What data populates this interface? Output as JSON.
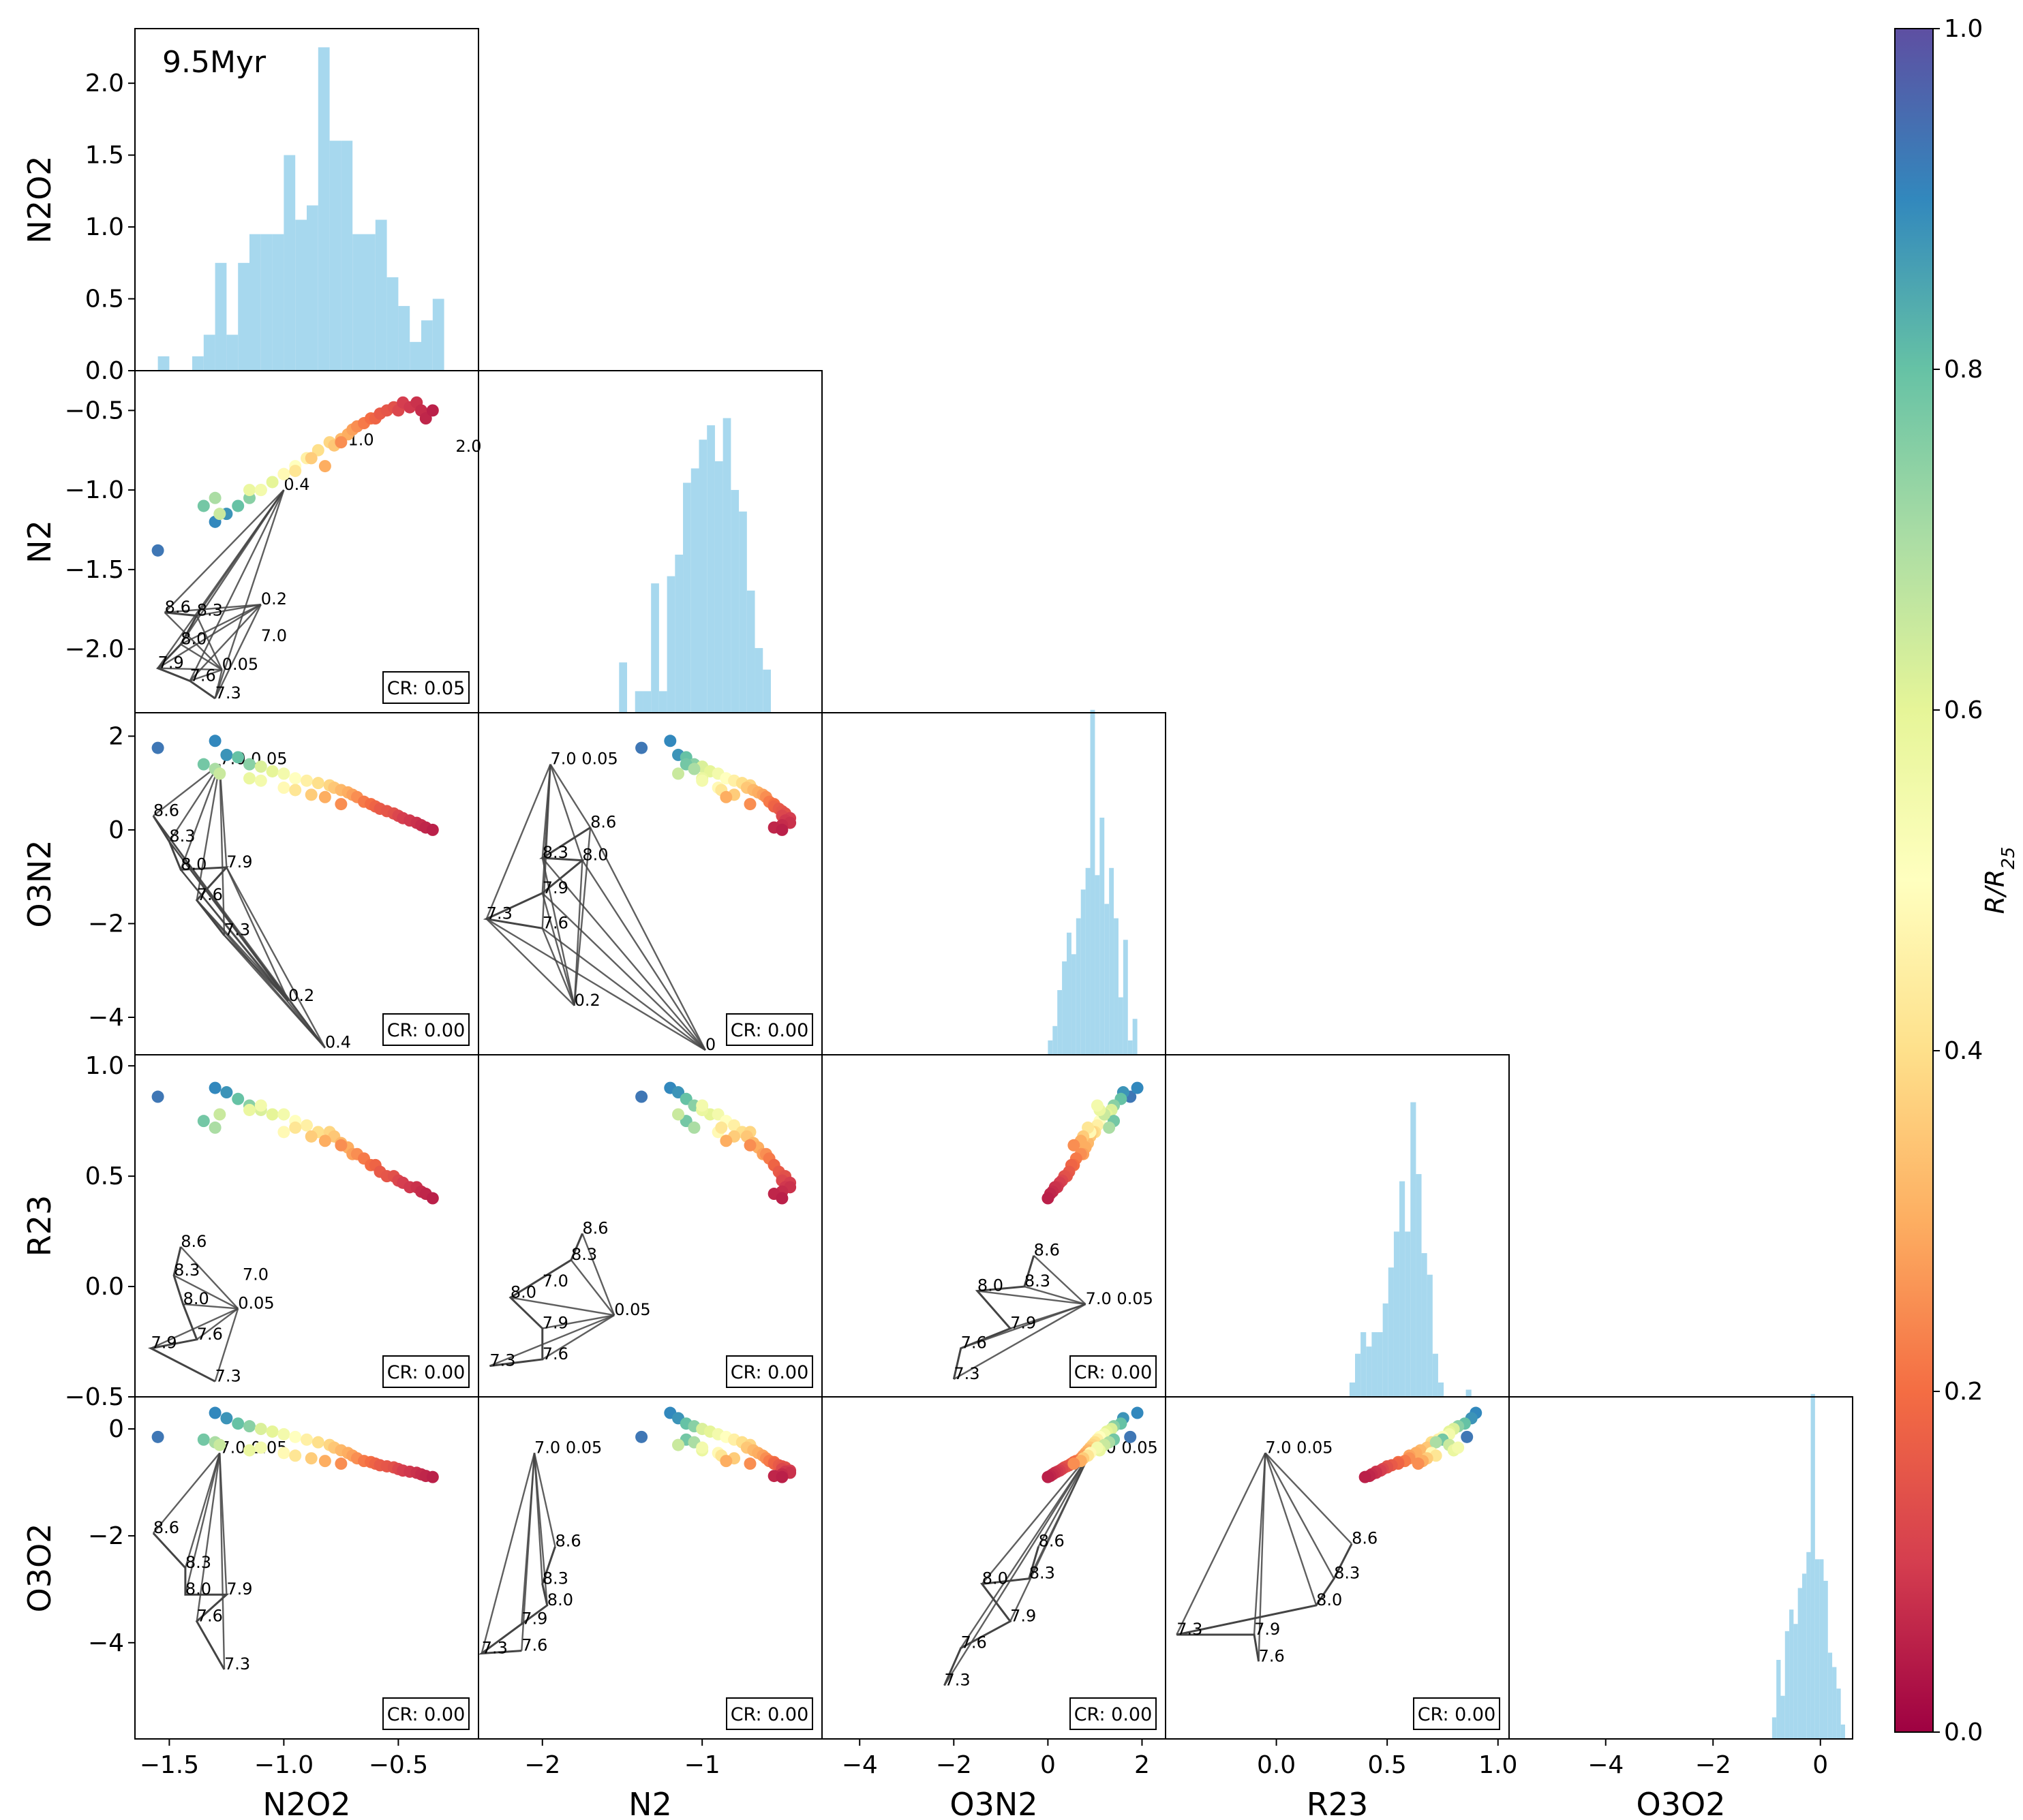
{
  "chart_data": {
    "type": "scatter",
    "title": "",
    "annotation": "9.5Myr",
    "variables": [
      "N2O2",
      "N2",
      "O3N2",
      "R23",
      "O3O2"
    ],
    "ranges": {
      "N2O2": [
        -1.65,
        -0.15
      ],
      "N2": [
        -2.4,
        -0.25
      ],
      "O3N2": [
        -4.8,
        2.5
      ],
      "R23": [
        -0.5,
        1.05
      ],
      "O3O2": [
        -5.8,
        0.6
      ]
    },
    "ticks": {
      "N2O2": [
        -1.5,
        -1.0,
        -0.5
      ],
      "N2": [
        -2,
        -1
      ],
      "O3N2": [
        -4,
        -2,
        0,
        2
      ],
      "R23": [
        0.0,
        0.5,
        1.0
      ],
      "O3O2": [
        -4,
        -2,
        0
      ]
    },
    "tick_labels": {
      "N2O2": [
        "−1.5",
        "−1.0",
        "−0.5"
      ],
      "N2": [
        "−2",
        "−1"
      ],
      "O3N2": [
        "−4",
        "−2",
        "0",
        "2"
      ],
      "R23": [
        "0.0",
        "0.5",
        "1.0"
      ],
      "O3O2": [
        "−4",
        "−2",
        "0"
      ]
    },
    "hist_y_ticks": [
      0.0,
      0.5,
      1.0,
      1.5,
      2.0
    ],
    "hist_y_tick_labels": [
      "0.0",
      "0.5",
      "1.0",
      "1.5",
      "2.0"
    ],
    "r23_row_tick_labels": [
      "−0.5",
      "0.0",
      "0.5",
      "1.0"
    ],
    "r23_row_ticks": [
      -0.5,
      0.0,
      0.5,
      1.0
    ],
    "n2_row_tick_labels": [
      "−2.0",
      "−1.5",
      "−1.0",
      "−0.5"
    ],
    "n2_row_ticks": [
      -2.0,
      -1.5,
      -1.0,
      -0.5
    ],
    "o3n2_row_tick_labels": [
      "−4",
      "−2",
      "0",
      "2"
    ],
    "o3n2_row_ticks": [
      -4,
      -2,
      0,
      2
    ],
    "o3o2_row_tick_labels": [
      "−4",
      "−2",
      "0"
    ],
    "o3o2_row_ticks": [
      -4,
      -2,
      0
    ],
    "histograms": {
      "N2O2": {
        "edges_start": -1.55,
        "bin_width": 0.05,
        "heights": [
          0.1,
          0.0,
          0.0,
          0.1,
          0.25,
          0.75,
          0.25,
          0.75,
          0.95,
          0.95,
          0.95,
          1.5,
          1.05,
          1.15,
          2.25,
          1.6,
          1.6,
          0.95,
          0.95,
          1.05,
          0.65,
          0.45,
          0.2,
          0.35,
          0.5
        ]
      },
      "N2": {
        "edges_start": -1.52,
        "bin_width": 0.05,
        "heights": [
          0.35,
          0.0,
          0.15,
          0.15,
          0.9,
          0.15,
          0.95,
          1.1,
          1.6,
          1.7,
          1.9,
          2.0,
          1.75,
          2.05,
          1.55,
          1.4,
          0.85,
          0.45,
          0.3
        ]
      },
      "O3N2": {
        "edges_start": 0.0,
        "bin_width": 0.1,
        "heights": [
          0.1,
          0.2,
          0.45,
          0.65,
          0.85,
          0.7,
          0.95,
          1.15,
          1.3,
          2.4,
          1.25,
          1.65,
          1.05,
          1.3,
          0.95,
          0.4,
          0.8,
          0.1,
          0.25
        ]
      },
      "R23": {
        "edges_start": 0.33,
        "bin_width": 0.025,
        "heights": [
          0.1,
          0.3,
          0.45,
          0.35,
          0.45,
          0.45,
          0.65,
          0.9,
          1.15,
          1.5,
          1.15,
          2.05,
          1.55,
          1.0,
          0.85,
          0.3,
          0.1,
          0.0,
          0.0,
          0.0,
          0.0,
          0.05
        ]
      },
      "O3O2": {
        "edges_start": -0.9,
        "bin_width": 0.08,
        "heights": [
          0.15,
          0.55,
          0.3,
          0.75,
          0.9,
          0.8,
          1.05,
          1.15,
          1.3,
          2.4,
          1.25,
          1.25,
          1.1,
          0.6,
          0.5,
          0.35,
          0.1
        ]
      }
    },
    "colorbar": {
      "label": "R/R25",
      "label_base": "R/R",
      "label_sub": "25",
      "ticks": [
        0.0,
        0.2,
        0.4,
        0.6,
        0.8,
        1.0
      ],
      "tick_labels": [
        "0.0",
        "0.2",
        "0.4",
        "0.6",
        "0.8",
        "1.0"
      ]
    },
    "cr_labels": {
      "1-0": "CR: 0.05",
      "2-0": "CR: 0.00",
      "2-1": "CR: 0.00",
      "3-0": "CR: 0.00",
      "3-1": "CR: 0.00",
      "3-2": "CR: 0.00",
      "4-0": "CR: 0.00",
      "4-1": "CR: 0.00",
      "4-2": "CR: 0.00",
      "4-3": "CR: 0.00"
    },
    "sample_points": {
      "N2O2": [
        -1.55,
        -1.3,
        -1.25,
        -1.2,
        -1.15,
        -1.1,
        -1.05,
        -1.0,
        -0.95,
        -0.9,
        -0.85,
        -0.8,
        -0.78,
        -0.75,
        -0.72,
        -0.7,
        -0.68,
        -0.65,
        -0.62,
        -0.6,
        -0.58,
        -0.55,
        -0.52,
        -0.5,
        -0.48,
        -0.45,
        -0.42,
        -0.4,
        -0.38,
        -0.35,
        -1.35,
        -1.3,
        -1.28,
        -1.15,
        -1.1,
        -1.0,
        -0.95,
        -0.88,
        -0.82,
        -0.75
      ],
      "N2": [
        -1.38,
        -1.2,
        -1.15,
        -1.1,
        -1.05,
        -1.0,
        -0.95,
        -0.9,
        -0.85,
        -0.8,
        -0.75,
        -0.7,
        -0.72,
        -0.68,
        -0.65,
        -0.62,
        -0.6,
        -0.58,
        -0.55,
        -0.55,
        -0.52,
        -0.5,
        -0.48,
        -0.5,
        -0.45,
        -0.48,
        -0.45,
        -0.5,
        -0.55,
        -0.5,
        -1.1,
        -1.05,
        -1.15,
        -1.0,
        -1.0,
        -0.9,
        -0.88,
        -0.8,
        -0.85,
        -0.7
      ],
      "O3N2": [
        1.75,
        1.9,
        1.6,
        1.55,
        1.4,
        1.35,
        1.25,
        1.2,
        1.1,
        1.05,
        1.0,
        0.95,
        0.9,
        0.85,
        0.8,
        0.75,
        0.7,
        0.6,
        0.55,
        0.5,
        0.45,
        0.4,
        0.35,
        0.3,
        0.25,
        0.2,
        0.15,
        0.1,
        0.05,
        0.0,
        1.4,
        1.3,
        1.2,
        1.1,
        1.05,
        0.9,
        0.85,
        0.75,
        0.7,
        0.55
      ],
      "R23": [
        0.86,
        0.9,
        0.88,
        0.85,
        0.82,
        0.8,
        0.78,
        0.78,
        0.75,
        0.73,
        0.7,
        0.7,
        0.68,
        0.65,
        0.63,
        0.6,
        0.6,
        0.58,
        0.55,
        0.55,
        0.52,
        0.5,
        0.5,
        0.48,
        0.47,
        0.45,
        0.45,
        0.43,
        0.42,
        0.4,
        0.75,
        0.72,
        0.78,
        0.8,
        0.82,
        0.7,
        0.72,
        0.68,
        0.66,
        0.64
      ],
      "O3O2": [
        -0.15,
        0.3,
        0.2,
        0.1,
        0.05,
        0.0,
        -0.05,
        -0.1,
        -0.15,
        -0.2,
        -0.25,
        -0.3,
        -0.35,
        -0.4,
        -0.45,
        -0.5,
        -0.55,
        -0.6,
        -0.62,
        -0.65,
        -0.68,
        -0.7,
        -0.72,
        -0.75,
        -0.78,
        -0.8,
        -0.82,
        -0.85,
        -0.88,
        -0.9,
        -0.2,
        -0.25,
        -0.3,
        -0.4,
        -0.35,
        -0.45,
        -0.5,
        -0.55,
        -0.6,
        -0.65
      ],
      "R": [
        0.93,
        0.9,
        0.88,
        0.8,
        0.75,
        0.62,
        0.6,
        0.55,
        0.5,
        0.45,
        0.4,
        0.38,
        0.35,
        0.32,
        0.3,
        0.28,
        0.25,
        0.22,
        0.2,
        0.18,
        0.16,
        0.15,
        0.14,
        0.12,
        0.1,
        0.09,
        0.08,
        0.07,
        0.06,
        0.05,
        0.78,
        0.7,
        0.65,
        0.58,
        0.55,
        0.48,
        0.42,
        0.36,
        0.3,
        0.25
      ]
    },
    "grid_labels": {
      "1-0": [
        {
          "t": "1.0",
          "x": -0.72,
          "y": -0.72
        },
        {
          "t": "2.0",
          "x": -0.25,
          "y": -0.76
        },
        {
          "t": "0.4",
          "x": -1.0,
          "y": -1.0
        },
        {
          "t": "0.2",
          "x": -1.1,
          "y": -1.72
        },
        {
          "t": "8.6",
          "x": -1.52,
          "y": -1.77
        },
        {
          "t": "8.3",
          "x": -1.38,
          "y": -1.79
        },
        {
          "t": "7.0",
          "x": -1.1,
          "y": -1.95
        },
        {
          "t": "8.0",
          "x": -1.45,
          "y": -1.97
        },
        {
          "t": "7.9",
          "x": -1.55,
          "y": -2.12
        },
        {
          "t": "0.05",
          "x": -1.27,
          "y": -2.13
        },
        {
          "t": "7.6",
          "x": -1.41,
          "y": -2.2
        },
        {
          "t": "7.3",
          "x": -1.3,
          "y": -2.31
        }
      ],
      "2-0": [
        {
          "t": "7.0 0.05",
          "x": -1.28,
          "y": 1.4
        },
        {
          "t": "8.6",
          "x": -1.57,
          "y": 0.3
        },
        {
          "t": "8.3",
          "x": -1.5,
          "y": -0.25
        },
        {
          "t": "8.0",
          "x": -1.45,
          "y": -0.85
        },
        {
          "t": "7.9",
          "x": -1.25,
          "y": -0.8
        },
        {
          "t": "7.6",
          "x": -1.38,
          "y": -1.5
        },
        {
          "t": "7.3",
          "x": -1.26,
          "y": -2.25
        },
        {
          "t": "0.2",
          "x": -0.98,
          "y": -3.65
        },
        {
          "t": "0.4",
          "x": -0.82,
          "y": -4.65
        }
      ],
      "2-1": [
        {
          "t": "7.0 0.05",
          "x": -1.95,
          "y": 1.4
        },
        {
          "t": "8.6",
          "x": -1.7,
          "y": 0.05
        },
        {
          "t": "8.3",
          "x": -2.0,
          "y": -0.6
        },
        {
          "t": "8.0",
          "x": -1.75,
          "y": -0.65
        },
        {
          "t": "7.9",
          "x": -2.0,
          "y": -1.35
        },
        {
          "t": "7.3",
          "x": -2.35,
          "y": -1.9
        },
        {
          "t": "7.6",
          "x": -2.0,
          "y": -2.1
        },
        {
          "t": "0.2",
          "x": -1.8,
          "y": -3.75
        },
        {
          "t": "0",
          "x": -0.98,
          "y": -4.7
        }
      ],
      "3-0": [
        {
          "t": "8.6",
          "x": -1.45,
          "y": 0.18
        },
        {
          "t": "8.3",
          "x": -1.48,
          "y": 0.05
        },
        {
          "t": "7.0",
          "x": -1.18,
          "y": 0.03
        },
        {
          "t": "8.0",
          "x": -1.44,
          "y": -0.08
        },
        {
          "t": "0.05",
          "x": -1.2,
          "y": -0.1
        },
        {
          "t": "7.6",
          "x": -1.38,
          "y": -0.24
        },
        {
          "t": "7.9",
          "x": -1.58,
          "y": -0.28
        },
        {
          "t": "7.3",
          "x": -1.3,
          "y": -0.43
        }
      ],
      "3-1": [
        {
          "t": "8.6",
          "x": -1.75,
          "y": 0.24
        },
        {
          "t": "8.3",
          "x": -1.82,
          "y": 0.12
        },
        {
          "t": "7.0",
          "x": -2.0,
          "y": 0.0
        },
        {
          "t": "8.0",
          "x": -2.2,
          "y": -0.05
        },
        {
          "t": "0.05",
          "x": -1.55,
          "y": -0.13
        },
        {
          "t": "7.9",
          "x": -2.0,
          "y": -0.19
        },
        {
          "t": "7.6",
          "x": -2.0,
          "y": -0.33
        },
        {
          "t": "7.3",
          "x": -2.33,
          "y": -0.36
        }
      ],
      "3-2": [
        {
          "t": "8.6",
          "x": -0.3,
          "y": 0.14
        },
        {
          "t": "8.3",
          "x": -0.5,
          "y": 0.0
        },
        {
          "t": "8.0",
          "x": -1.5,
          "y": -0.02
        },
        {
          "t": "7.0 0.05",
          "x": 0.8,
          "y": -0.08
        },
        {
          "t": "7.9",
          "x": -0.8,
          "y": -0.19
        },
        {
          "t": "7.6",
          "x": -1.85,
          "y": -0.28
        },
        {
          "t": "7.3",
          "x": -2.0,
          "y": -0.42
        }
      ],
      "4-0": [
        {
          "t": "7.0 0.05",
          "x": -1.28,
          "y": -0.45
        },
        {
          "t": "8.6",
          "x": -1.57,
          "y": -1.95
        },
        {
          "t": "8.3",
          "x": -1.43,
          "y": -2.6
        },
        {
          "t": "8.0",
          "x": -1.43,
          "y": -3.1
        },
        {
          "t": "7.9",
          "x": -1.25,
          "y": -3.1
        },
        {
          "t": "7.6",
          "x": -1.38,
          "y": -3.6
        },
        {
          "t": "7.3",
          "x": -1.26,
          "y": -4.5
        }
      ],
      "4-1": [
        {
          "t": "7.0 0.05",
          "x": -2.05,
          "y": -0.45
        },
        {
          "t": "8.6",
          "x": -1.92,
          "y": -2.2
        },
        {
          "t": "8.3",
          "x": -2.0,
          "y": -2.9
        },
        {
          "t": "8.0",
          "x": -1.97,
          "y": -3.3
        },
        {
          "t": "7.9",
          "x": -2.13,
          "y": -3.65
        },
        {
          "t": "7.3",
          "x": -2.38,
          "y": -4.2
        },
        {
          "t": "7.6",
          "x": -2.13,
          "y": -4.15
        }
      ],
      "4-2": [
        {
          "t": "7.0 0.05",
          "x": 0.9,
          "y": -0.45
        },
        {
          "t": "8.6",
          "x": -0.2,
          "y": -2.2
        },
        {
          "t": "8.3",
          "x": -0.4,
          "y": -2.8
        },
        {
          "t": "8.0",
          "x": -1.4,
          "y": -2.9
        },
        {
          "t": "7.9",
          "x": -0.8,
          "y": -3.6
        },
        {
          "t": "7.6",
          "x": -1.85,
          "y": -4.1
        },
        {
          "t": "7.3",
          "x": -2.2,
          "y": -4.8
        }
      ],
      "4-3": [
        {
          "t": "7.0 0.05",
          "x": -0.05,
          "y": -0.45
        },
        {
          "t": "8.6",
          "x": 0.34,
          "y": -2.15
        },
        {
          "t": "8.3",
          "x": 0.26,
          "y": -2.8
        },
        {
          "t": "8.0",
          "x": 0.18,
          "y": -3.3
        },
        {
          "t": "7.3",
          "x": -0.45,
          "y": -3.85
        },
        {
          "t": "7.9",
          "x": -0.1,
          "y": -3.85
        },
        {
          "t": "7.6",
          "x": -0.08,
          "y": -4.35
        }
      ]
    }
  },
  "colors": {
    "hist": "#a7d8ee",
    "grid_line": "#444444"
  }
}
